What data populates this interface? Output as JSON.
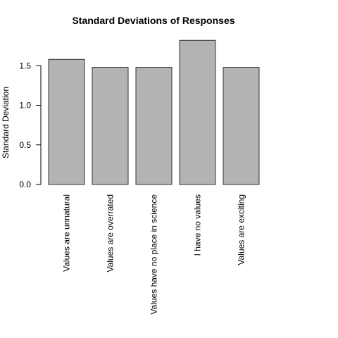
{
  "chart_data": {
    "type": "bar",
    "title": "Standard Deviations of Responses",
    "xlabel": "",
    "ylabel": "Standard Deviation",
    "categories": [
      "Values are unnatural",
      "Values are overrated",
      "Values have no place in science",
      "I have no values",
      "Values are exciting"
    ],
    "values": [
      1.58,
      1.48,
      1.48,
      1.82,
      1.48
    ],
    "yticks": [
      0.0,
      0.5,
      1.0,
      1.5
    ],
    "ytick_labels": [
      "0.0",
      "0.5",
      "1.0",
      "1.5"
    ],
    "ylim": [
      0,
      1.9
    ],
    "grid": false,
    "colors": {
      "bar_fill": "#b3b3b3",
      "bar_stroke": "#333333"
    }
  }
}
